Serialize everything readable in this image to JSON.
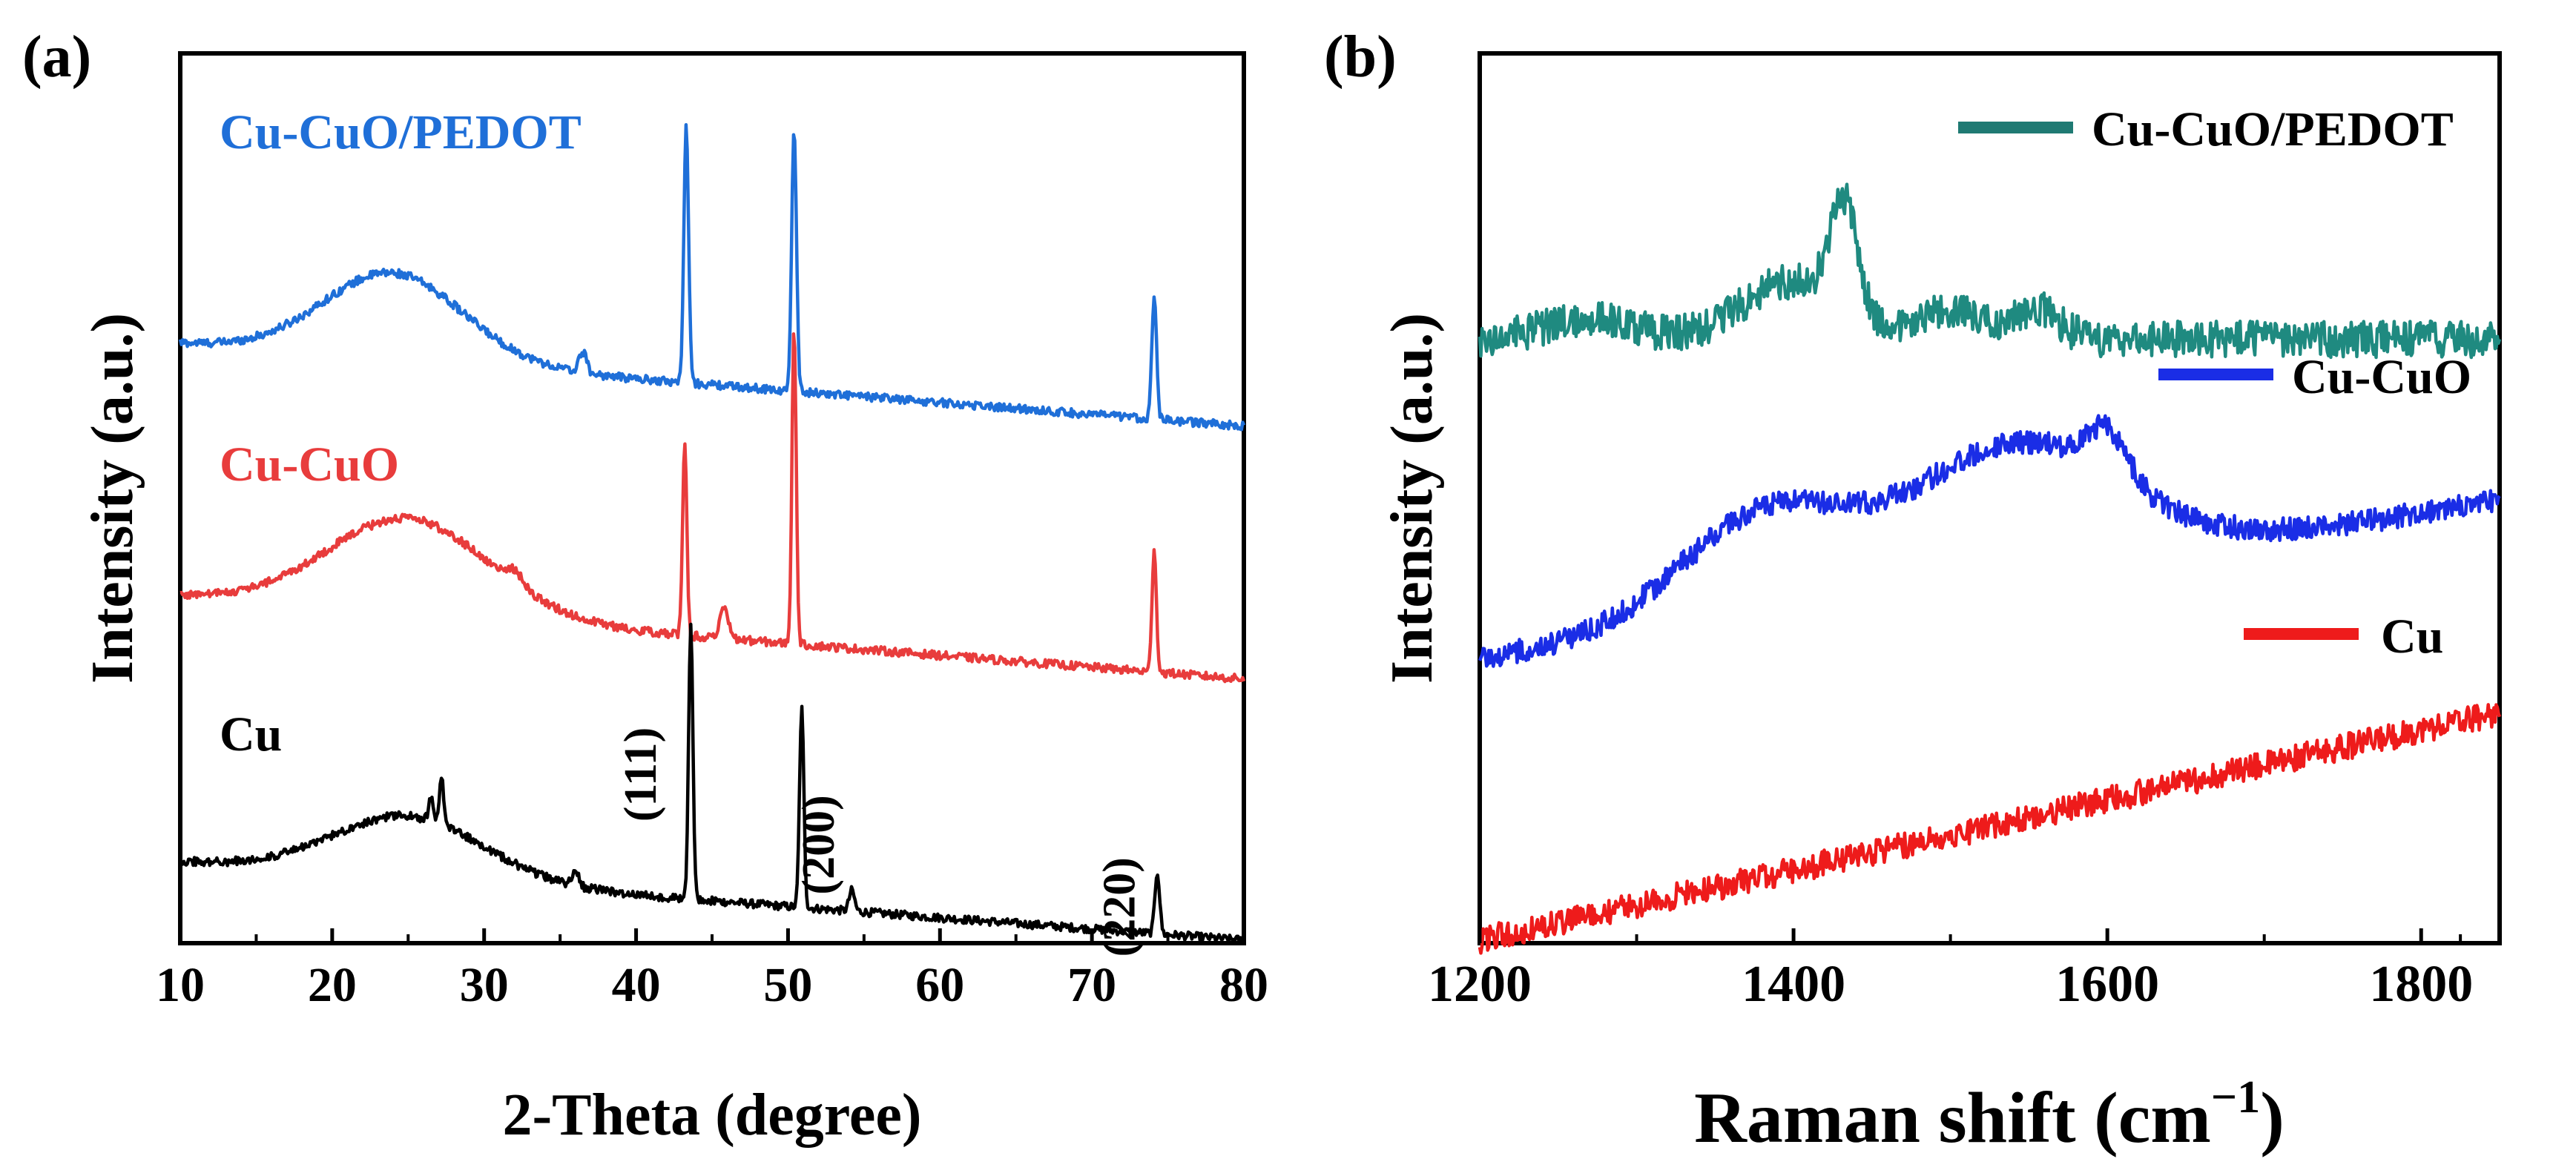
{
  "chart_data": [
    {
      "panel_label": "(a)",
      "type": "line",
      "xlabel": "2-Theta (degree)",
      "ylabel": "Intensity (a.u.)",
      "xlim": [
        10,
        80
      ],
      "ylim": [
        0,
        10
      ],
      "xticks": [
        10,
        20,
        30,
        40,
        50,
        60,
        70,
        80
      ],
      "grid": false,
      "series": [
        {
          "name": "Cu-CuO/PEDOT",
          "color": "#1f6fd8",
          "offset": 6.2,
          "base_start": 1.0,
          "base_end": 0.0,
          "hump": {
            "center": 24,
            "width": 6.5,
            "height": 1.05
          },
          "noise": 0.05,
          "peaks": [
            {
              "x": 36.5,
              "h": 0.25,
              "w": 0.35
            },
            {
              "x": 43.3,
              "h": 3.1,
              "w": 0.22
            },
            {
              "x": 50.4,
              "h": 3.2,
              "w": 0.22
            },
            {
              "x": 74.1,
              "h": 1.5,
              "w": 0.22
            }
          ]
        },
        {
          "name": "Cu-CuO",
          "color": "#e83c3c",
          "offset": 3.15,
          "base_start": 1.0,
          "base_end": 0.0,
          "hump": {
            "center": 25,
            "width": 7.5,
            "height": 1.15
          },
          "noise": 0.05,
          "peaks": [
            {
              "x": 32.0,
              "h": 0.15,
              "w": 0.8
            },
            {
              "x": 43.2,
              "h": 2.3,
              "w": 0.2
            },
            {
              "x": 45.8,
              "h": 0.35,
              "w": 0.4
            },
            {
              "x": 50.4,
              "h": 3.8,
              "w": 0.2
            },
            {
              "x": 74.1,
              "h": 1.5,
              "w": 0.2
            }
          ]
        },
        {
          "name": "Cu",
          "color": "#000000",
          "offset": 0.0,
          "base_start": 0.95,
          "base_end": 0.0,
          "hump": {
            "center": 25,
            "width": 7.0,
            "height": 0.75
          },
          "noise": 0.05,
          "peaks": [
            {
              "x": 26.5,
              "h": 0.3,
              "w": 0.2
            },
            {
              "x": 27.2,
              "h": 0.55,
              "w": 0.2
            },
            {
              "x": 36.0,
              "h": 0.2,
              "w": 0.3
            },
            {
              "x": 43.6,
              "h": 3.3,
              "w": 0.2
            },
            {
              "x": 50.9,
              "h": 2.4,
              "w": 0.2
            },
            {
              "x": 54.2,
              "h": 0.25,
              "w": 0.25
            },
            {
              "x": 74.3,
              "h": 0.75,
              "w": 0.22
            }
          ]
        }
      ],
      "legend_labels": [
        {
          "text": "Cu-CuO/PEDOT",
          "color": "#1f6fd8"
        },
        {
          "text": "Cu-CuO",
          "color": "#e83c3c"
        },
        {
          "text": "Cu",
          "color": "#000000"
        }
      ],
      "annotations": [
        {
          "text": "(111)",
          "x": 41.3,
          "y": 2.0
        },
        {
          "text": "(200)",
          "x": 53.0,
          "y": 1.15
        },
        {
          "text": "(220)",
          "x": 72.8,
          "y": 0.4
        }
      ]
    },
    {
      "panel_label": "(b)",
      "type": "line",
      "xlabel": "Raman shift (cm−1)",
      "ylabel": "Intensity (a.u.)",
      "xlim": [
        1200,
        1850
      ],
      "ylim": [
        0,
        10
      ],
      "xticks": [
        1200,
        1400,
        1600,
        1800
      ],
      "grid": false,
      "series": [
        {
          "name": "Cu-CuO/PEDOT",
          "color": "#1f8a80",
          "offset": 7.25,
          "base_start": 0.0,
          "base_end": 0.0,
          "noise": 0.22,
          "bumps": [
            {
              "x": 1270,
              "h": 0.25,
              "w": 40
            },
            {
              "x": 1400,
              "h": 0.7,
              "w": 45
            },
            {
              "x": 1432,
              "h": 1.3,
              "w": 12
            },
            {
              "x": 1500,
              "h": 0.35,
              "w": 30
            },
            {
              "x": 1555,
              "h": 0.35,
              "w": 20
            }
          ]
        },
        {
          "name": "Cu-CuO",
          "color": "#1a2de6",
          "offset": 3.4,
          "base_start": 0.0,
          "base_end": 1.9,
          "noise": 0.14,
          "bumps": [
            {
              "x": 1380,
              "h": 1.2,
              "w": 75
            },
            {
              "x": 1540,
              "h": 1.6,
              "w": 95
            },
            {
              "x": 1600,
              "h": 0.55,
              "w": 18
            }
          ]
        },
        {
          "name": "Cu",
          "color": "#ee1b1b",
          "offset": 0.0,
          "base_start": 0.0,
          "base_end": 2.75,
          "noise": 0.16,
          "bumps": []
        }
      ],
      "legend": [
        {
          "text": "Cu-CuO/PEDOT",
          "color": "#1f7a73"
        },
        {
          "text": "Cu-CuO",
          "color": "#1a2de6"
        },
        {
          "text": "Cu",
          "color": "#ee1b1b"
        }
      ]
    }
  ]
}
